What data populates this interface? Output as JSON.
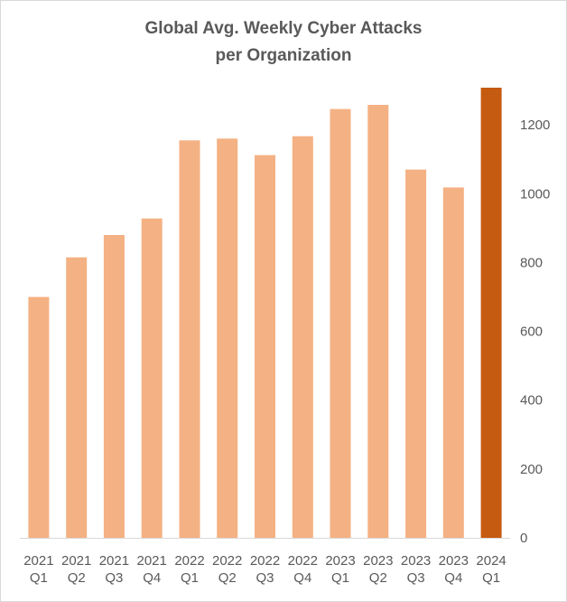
{
  "chart_data": {
    "type": "bar",
    "title_lines": [
      "Global Avg. Weekly Cyber Attacks",
      "per Organization"
    ],
    "categories": [
      [
        "2021",
        "Q1"
      ],
      [
        "2021",
        "Q2"
      ],
      [
        "2021",
        "Q3"
      ],
      [
        "2021",
        "Q4"
      ],
      [
        "2022",
        "Q1"
      ],
      [
        "2022",
        "Q2"
      ],
      [
        "2022",
        "Q3"
      ],
      [
        "2022",
        "Q4"
      ],
      [
        "2023",
        "Q1"
      ],
      [
        "2023",
        "Q2"
      ],
      [
        "2023",
        "Q3"
      ],
      [
        "2023",
        "Q4"
      ],
      [
        "2024",
        "Q1"
      ]
    ],
    "values": [
      700,
      815,
      880,
      928,
      1155,
      1160,
      1112,
      1167,
      1246,
      1258,
      1070,
      1018,
      1308
    ],
    "ylim": [
      0,
      1300
    ],
    "yticks": [
      0,
      200,
      400,
      600,
      800,
      1000,
      1200
    ],
    "y_axis_side": "right",
    "grid": false,
    "xlabel": "",
    "ylabel": "",
    "colors": {
      "bar": "#f4b183",
      "highlight": "#c55a11",
      "text": "#595959",
      "axis": "#d9d9d9"
    },
    "highlight_index": 12
  }
}
